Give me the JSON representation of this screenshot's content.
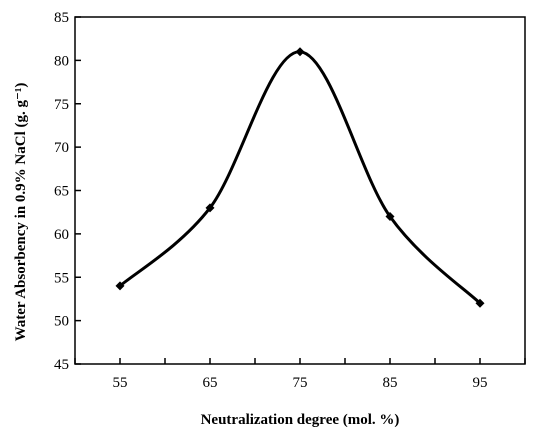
{
  "chart_data": {
    "type": "line",
    "title": "",
    "xlabel": "Neutralization degree (mol. %)",
    "ylabel": "Water Absorbency in 0.9% NaCl (g. g⁻¹)",
    "x": [
      55,
      65,
      75,
      85,
      95
    ],
    "x_tick_labels": [
      "55",
      "65",
      "75",
      "85",
      "95"
    ],
    "xlim": [
      50,
      100
    ],
    "ylim": [
      45,
      85
    ],
    "y_ticks": [
      45,
      50,
      55,
      60,
      65,
      70,
      75,
      80,
      85
    ],
    "y_tick_labels": [
      "45",
      "50",
      "55",
      "60",
      "65",
      "70",
      "75",
      "80",
      "85"
    ],
    "series": [
      {
        "values": [
          54,
          63,
          81,
          62,
          52
        ],
        "smooth": true,
        "marker": "diamond"
      }
    ],
    "grid": false,
    "legend": "none",
    "colors": {
      "line": "#000000",
      "axis": "#000000"
    }
  }
}
